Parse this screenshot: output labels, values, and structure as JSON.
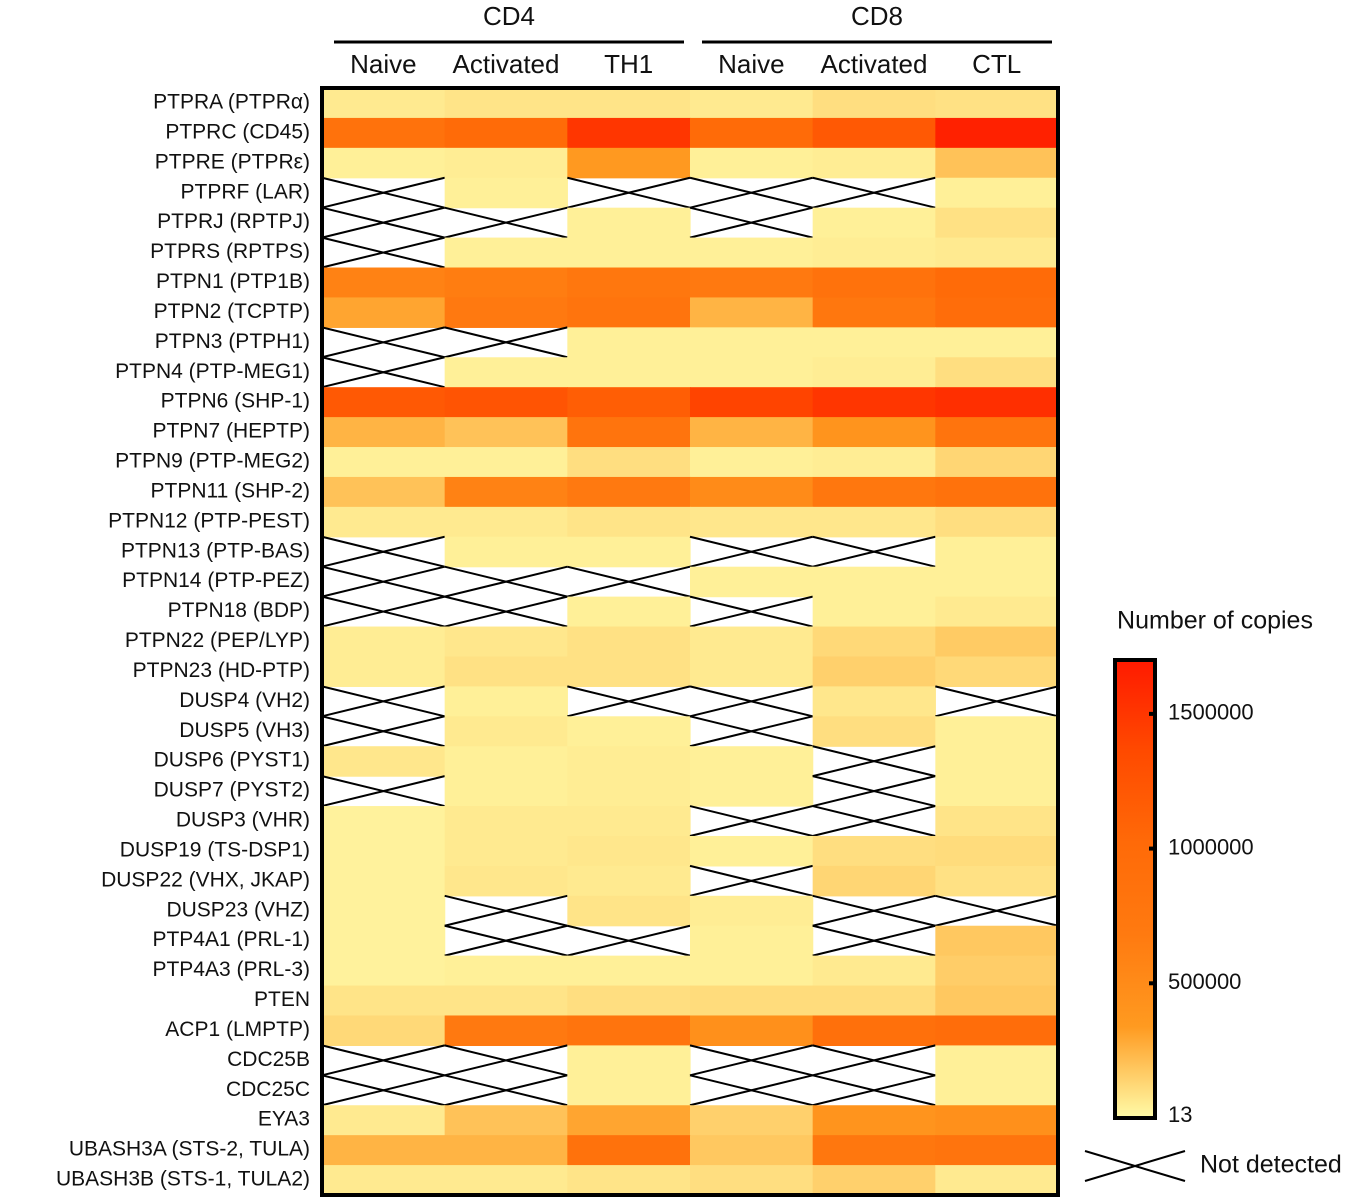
{
  "chart_data": {
    "type": "heatmap",
    "groups": [
      {
        "name": "CD4",
        "columns": [
          0,
          1,
          2
        ]
      },
      {
        "name": "CD8",
        "columns": [
          3,
          4,
          5
        ]
      }
    ],
    "columns": [
      "Naive",
      "Activated",
      "TH1",
      "Naive",
      "Activated",
      "CTL"
    ],
    "rows": [
      "PTPRA (PTPRα)",
      "PTPRC (CD45)",
      "PTPRE (PTPRε)",
      "PTPRF (LAR)",
      "PTPRJ (RPTPJ)",
      "PTPRS (RPTPS)",
      "PTPN1 (PTP1B)",
      "PTPN2 (TCPTP)",
      "PTPN3 (PTPH1)",
      "PTPN4 (PTP-MEG1)",
      "PTPN6 (SHP-1)",
      "PTPN7 (HEPTP)",
      "PTPN9 (PTP-MEG2)",
      "PTPN11 (SHP-2)",
      "PTPN12 (PTP-PEST)",
      "PTPN13 (PTP-BAS)",
      "PTPN14 (PTP-PEZ)",
      "PTPN18 (BDP)",
      "PTPN22 (PEP/LYP)",
      "PTPN23 (HD-PTP)",
      "DUSP4 (VH2)",
      "DUSP5 (VH3)",
      "DUSP6 (PYST1)",
      "DUSP7 (PYST2)",
      "DUSP3 (VHR)",
      "DUSP19 (TS-DSP1)",
      "DUSP22 (VHX, JKAP)",
      "DUSP23 (VHZ)",
      "PTP4A1 (PRL-1)",
      "PTP4A3 (PRL-3)",
      "PTEN",
      "ACP1 (LMPTP)",
      "CDC25B",
      "CDC25C",
      "EYA3",
      "UBASH3A (STS-2, TULA)",
      "UBASH3B (STS-1, TULA2)"
    ],
    "values": [
      [
        60000,
        80000,
        80000,
        60000,
        100000,
        90000
      ],
      [
        850000,
        1000000,
        1500000,
        1000000,
        1200000,
        1650000
      ],
      [
        40000,
        50000,
        350000,
        40000,
        50000,
        200000
      ],
      [
        null,
        40000,
        null,
        null,
        null,
        40000
      ],
      [
        null,
        null,
        40000,
        null,
        40000,
        90000
      ],
      [
        null,
        40000,
        40000,
        40000,
        50000,
        60000
      ],
      [
        600000,
        650000,
        750000,
        700000,
        850000,
        1000000
      ],
      [
        300000,
        700000,
        800000,
        250000,
        750000,
        950000
      ],
      [
        null,
        null,
        40000,
        40000,
        40000,
        40000
      ],
      [
        null,
        40000,
        40000,
        40000,
        50000,
        100000
      ],
      [
        1200000,
        1250000,
        1150000,
        1400000,
        1500000,
        1550000
      ],
      [
        250000,
        200000,
        800000,
        250000,
        400000,
        800000
      ],
      [
        40000,
        40000,
        100000,
        40000,
        50000,
        130000
      ],
      [
        200000,
        600000,
        700000,
        500000,
        750000,
        850000
      ],
      [
        60000,
        60000,
        80000,
        70000,
        70000,
        100000
      ],
      [
        null,
        40000,
        40000,
        null,
        null,
        40000
      ],
      [
        null,
        null,
        null,
        40000,
        40000,
        40000
      ],
      [
        null,
        null,
        40000,
        null,
        40000,
        60000
      ],
      [
        50000,
        70000,
        90000,
        60000,
        120000,
        170000
      ],
      [
        50000,
        90000,
        90000,
        60000,
        150000,
        120000
      ],
      [
        null,
        40000,
        null,
        null,
        70000,
        null
      ],
      [
        null,
        60000,
        40000,
        null,
        100000,
        40000
      ],
      [
        70000,
        40000,
        50000,
        40000,
        null,
        40000
      ],
      [
        null,
        40000,
        50000,
        40000,
        null,
        40000
      ],
      [
        30000,
        60000,
        60000,
        null,
        null,
        80000
      ],
      [
        30000,
        60000,
        70000,
        40000,
        100000,
        110000
      ],
      [
        30000,
        70000,
        60000,
        null,
        130000,
        90000
      ],
      [
        30000,
        null,
        80000,
        50000,
        null,
        null
      ],
      [
        30000,
        null,
        null,
        40000,
        null,
        180000
      ],
      [
        30000,
        40000,
        40000,
        40000,
        60000,
        160000
      ],
      [
        80000,
        80000,
        100000,
        110000,
        110000,
        180000
      ],
      [
        120000,
        700000,
        800000,
        450000,
        900000,
        950000
      ],
      [
        null,
        null,
        40000,
        null,
        null,
        40000
      ],
      [
        null,
        null,
        40000,
        null,
        null,
        40000
      ],
      [
        60000,
        200000,
        300000,
        150000,
        400000,
        450000
      ],
      [
        250000,
        250000,
        850000,
        180000,
        750000,
        800000
      ],
      [
        60000,
        60000,
        80000,
        100000,
        150000,
        60000
      ]
    ],
    "colorscale": [
      "#fffba8",
      "#ff9a20",
      "#ff7a10",
      "#ff6a08",
      "#ff4a00",
      "#ff1a00"
    ],
    "zlim": [
      13,
      1700000
    ],
    "zticks": [
      13,
      500000,
      1000000,
      1500000
    ],
    "legend_title": "Number of copies",
    "null_label": "Not detected"
  }
}
